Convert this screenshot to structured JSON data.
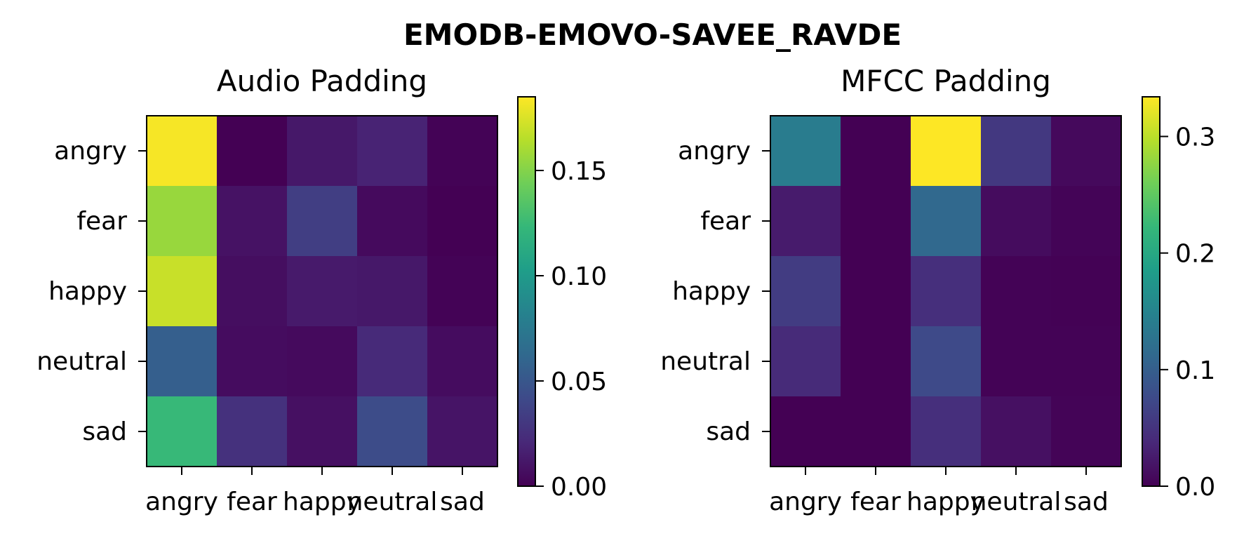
{
  "figure": {
    "suptitle": "EMODB-EMOVO-SAVEE_RAVDE"
  },
  "colormap": [
    "#440154",
    "#482878",
    "#3e4989",
    "#31688e",
    "#26828e",
    "#1f9e89",
    "#35b779",
    "#6ece58",
    "#b5de2b",
    "#fde725"
  ],
  "chart_data": [
    {
      "type": "heatmap",
      "title": "Audio Padding",
      "x_categories": [
        "angry",
        "fear",
        "happy",
        "neutral",
        "sad"
      ],
      "y_categories": [
        "angry",
        "fear",
        "happy",
        "neutral",
        "sad"
      ],
      "values": [
        [
          0.183,
          0.0,
          0.012,
          0.018,
          0.001
        ],
        [
          0.156,
          0.009,
          0.034,
          0.005,
          0.0
        ],
        [
          0.17,
          0.007,
          0.013,
          0.012,
          0.001
        ],
        [
          0.056,
          0.006,
          0.005,
          0.022,
          0.006
        ],
        [
          0.124,
          0.026,
          0.008,
          0.043,
          0.01
        ]
      ],
      "colorbar": {
        "min": 0.0,
        "max": 0.185,
        "ticks": [
          0.0,
          0.05,
          0.1,
          0.15
        ],
        "tick_labels": [
          "0.00",
          "0.05",
          "0.10",
          "0.15"
        ]
      }
    },
    {
      "type": "heatmap",
      "title": "MFCC Padding",
      "x_categories": [
        "angry",
        "fear",
        "happy",
        "neutral",
        "sad"
      ],
      "y_categories": [
        "angry",
        "fear",
        "happy",
        "neutral",
        "sad"
      ],
      "values": [
        [
          0.14,
          0.0,
          0.334,
          0.055,
          0.008
        ],
        [
          0.025,
          0.0,
          0.113,
          0.01,
          0.003
        ],
        [
          0.06,
          0.0,
          0.045,
          0.002,
          0.001
        ],
        [
          0.04,
          0.0,
          0.075,
          0.002,
          0.002
        ],
        [
          0.0,
          0.0,
          0.045,
          0.014,
          0.003
        ]
      ],
      "colorbar": {
        "min": 0.0,
        "max": 0.334,
        "ticks": [
          0.0,
          0.1,
          0.2,
          0.3
        ],
        "tick_labels": [
          "0.0",
          "0.1",
          "0.2",
          "0.3"
        ]
      }
    }
  ]
}
